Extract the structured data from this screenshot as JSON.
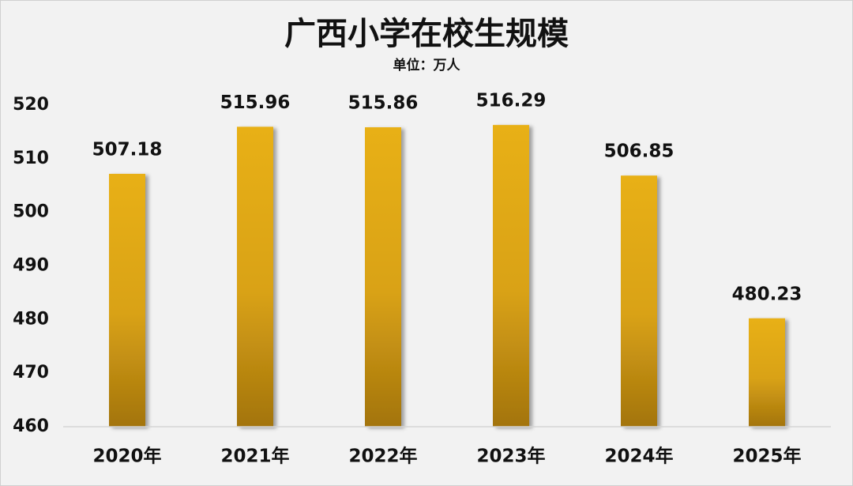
{
  "chart_data": {
    "type": "bar",
    "title": "广西小学在校生规模",
    "subtitle": "单位：万人",
    "categories": [
      "2020年",
      "2021年",
      "2022年",
      "2023年",
      "2024年",
      "2025年"
    ],
    "values": [
      507.18,
      515.96,
      515.86,
      516.29,
      506.85,
      480.23
    ],
    "color": "#e8b012",
    "ylim": [
      460,
      520
    ],
    "yticks": [
      460,
      470,
      480,
      490,
      500,
      510,
      520
    ],
    "grid": false
  }
}
